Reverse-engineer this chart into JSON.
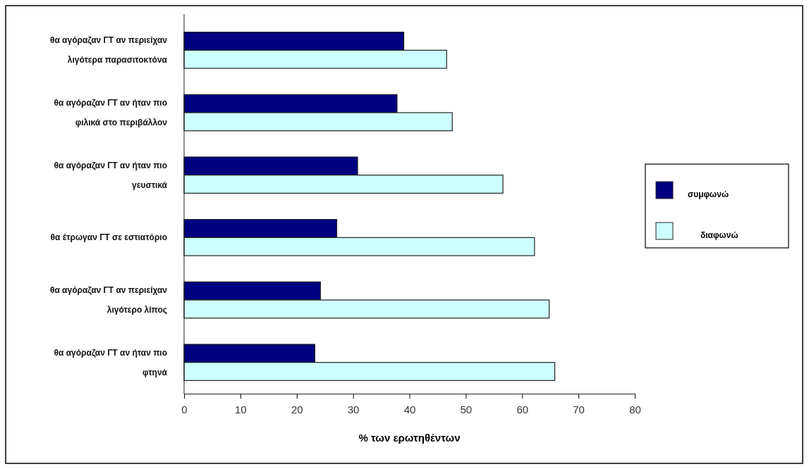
{
  "chart_data": {
    "type": "bar",
    "orientation": "horizontal",
    "xlabel": "% των ερωτηθέντων",
    "categories": [
      "θα αγόραζαν ΓΤ αν περιείχαν λιγότερα παρασιτοκτόνα",
      "θα αγόραζαν ΓΤ αν ήταν πιο φιλικά στο περιβάλλον",
      "θα αγόραζαν ΓΤ αν ήταν πιο γευστικά",
      "θα έτρωγαν ΓΤ σε εστιατόριο",
      "θα αγόραζαν ΓΤ αν περιείχαν λιγότερο λίπος",
      "θα αγόραζαν ΓΤ αν ήταν πιο φτηνά"
    ],
    "series": [
      {
        "name": "συμφωνώ",
        "color": "#000080",
        "values": [
          39,
          37.8,
          30.8,
          27.1,
          24.2,
          23.2
        ]
      },
      {
        "name": "διαφωνώ",
        "color": "#ccffff",
        "values": [
          46.6,
          47.6,
          56.6,
          62.2,
          64.8,
          65.8
        ]
      }
    ],
    "xlim": [
      0,
      80
    ],
    "xticks": [
      0,
      10,
      20,
      30,
      40,
      50,
      60,
      70,
      80
    ],
    "grid": false,
    "legend": "right"
  }
}
